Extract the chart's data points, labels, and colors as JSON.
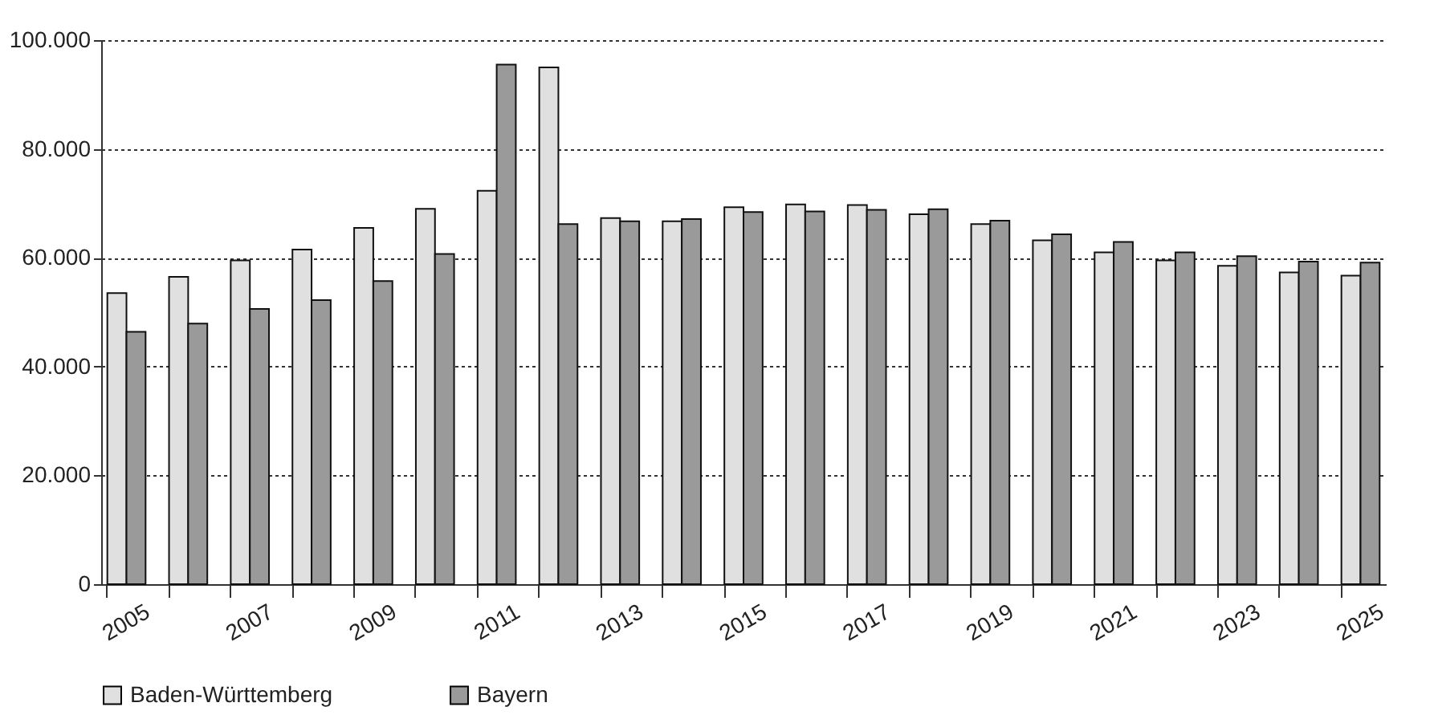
{
  "chart_data": {
    "type": "bar",
    "categories": [
      "2005",
      null,
      "2007",
      null,
      "2009",
      null,
      "2011",
      null,
      "2013",
      null,
      "2015",
      null,
      "2017",
      null,
      "2019",
      null,
      "2021",
      null,
      "2023",
      null,
      "2025"
    ],
    "series": [
      {
        "name": "Baden-Württemberg",
        "color": "#e0e0e0",
        "values": [
          53500,
          56500,
          59500,
          61500,
          65500,
          69000,
          72300,
          95000,
          67300,
          66700,
          69300,
          69800,
          69700,
          68000,
          66200,
          63200,
          61000,
          59500,
          58500,
          57300,
          56700
        ]
      },
      {
        "name": "Bayern",
        "color": "#9a9a9a",
        "values": [
          46400,
          47900,
          50600,
          52200,
          55700,
          60700,
          95500,
          66200,
          66700,
          67100,
          68400,
          68500,
          68800,
          68900,
          66800,
          64300,
          62900,
          61000,
          60300,
          59300,
          59100
        ]
      }
    ],
    "ylim": [
      0,
      100000
    ],
    "yticks": [
      0,
      {
        "value": 20000,
        "label": "20.000"
      },
      {
        "value": 40000,
        "label": "40.000"
      },
      {
        "value": 60000,
        "label": "60.000"
      },
      {
        "value": 80000,
        "label": "80.000"
      },
      {
        "value": 100000,
        "label": "100.000"
      }
    ],
    "grid": "y",
    "legend": "bottom left"
  }
}
